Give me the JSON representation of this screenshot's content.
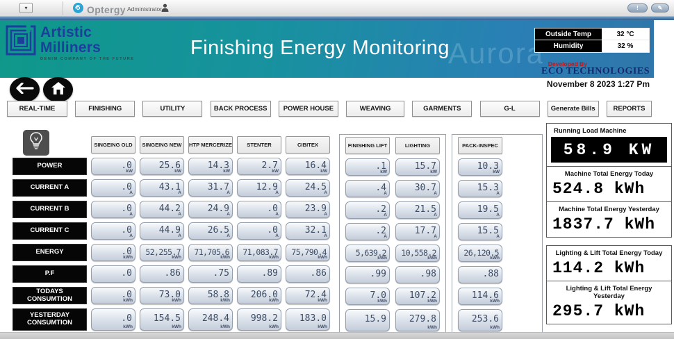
{
  "topbar": {
    "dropdown_glyph": "▾",
    "brand": "Optergy",
    "user": "Administrator",
    "window_buttons": [
      "!",
      "✎"
    ]
  },
  "header": {
    "logo_line1": "Artistic",
    "logo_line2": "Milliners",
    "logo_tagline": "DENIM COMPANY OF THE FUTURE",
    "title": "Finishing Energy Monitoring",
    "watermark": "Aurora",
    "outside_temp_label": "Outside Temp",
    "outside_temp_value": "32 °C",
    "humidity_label": "Humidity",
    "humidity_value": "32 %",
    "developed_by": "Developed By",
    "developer": "ECO TECHNOLOGIES",
    "datetime": "November 8 2023 1:27 Pm"
  },
  "nav": [
    "REAL-TIME",
    "FINISHING",
    "UTILITY",
    "BACK PROCESS",
    "POWER HOUSE",
    "WEAVING",
    "GARMENTS",
    "G-L",
    "Generate Bills",
    "REPORTS"
  ],
  "table": {
    "row_labels": [
      "POWER",
      "CURRENT A",
      "CURRENT B",
      "CURRENT C",
      "ENERGY",
      "P.F",
      "TODAYS CONSUMTION",
      "YESTERDAY CONSUMTION"
    ],
    "units_by_row": [
      "kW",
      "A",
      "A",
      "A",
      "kWh",
      "",
      "kWh",
      "kWh"
    ],
    "no_unit_cells": [
      [
        5,
        7
      ]
    ],
    "columns": [
      {
        "label": "SINGEING OLD",
        "group": "main",
        "values": [
          ".0",
          ".0",
          ".0",
          ".0",
          ".0",
          ".0",
          ".0",
          ".0"
        ]
      },
      {
        "label": "SINGEING NEW",
        "group": "main",
        "values": [
          "25.6",
          "43.1",
          "44.2",
          "44.9",
          "52,255.7",
          ".86",
          "73.0",
          "154.5"
        ]
      },
      {
        "label": "HTP MERCERIZE",
        "group": "main",
        "values": [
          "14.3",
          "31.7",
          "24.9",
          "26.5",
          "71,705.6",
          ".75",
          "58.8",
          "248.4"
        ]
      },
      {
        "label": "STENTER",
        "group": "main",
        "values": [
          "2.7",
          "12.9",
          ".0",
          ".0",
          "71,083.7",
          ".89",
          "206.0",
          "998.2"
        ]
      },
      {
        "label": "CIBITEX",
        "group": "main",
        "values": [
          "16.4",
          "24.5",
          "23.9",
          "32.1",
          "75,790.4",
          ".86",
          "72.4",
          "183.0"
        ]
      },
      {
        "label": "FINISHING LIFT",
        "group": "lift-lighting",
        "values": [
          ".1",
          ".4",
          ".2",
          ".2",
          "5,639.2",
          ".99",
          "7.0",
          "15.9"
        ]
      },
      {
        "label": "LIGHTING",
        "group": "lift-lighting",
        "values": [
          "15.7",
          "30.7",
          "21.5",
          "17.7",
          "10,558.2",
          ".98",
          "107.2",
          "279.8"
        ]
      },
      {
        "label": "PACK-INSPEC",
        "group": "pack-inspec",
        "values": [
          "10.3",
          "15.3",
          "19.5",
          "15.5",
          "26,120.5",
          ".88",
          "114.6",
          "253.6"
        ]
      }
    ]
  },
  "summary": {
    "running_load_label": "Running Load Machine",
    "running_load_value": "58.9 KW",
    "boxes": [
      {
        "label": "Machine Total Energy Today",
        "value": "524.8 kWh"
      },
      {
        "label": "Machine Total Energy Yesterday",
        "value": "1837.7 kWh"
      },
      {
        "label": "Lighting & Lift Total Energy Today",
        "value": "114.2 kWh"
      },
      {
        "label": "Lighting & Lift Total Energy Yesterday",
        "value": "295.7 kWh"
      }
    ]
  }
}
